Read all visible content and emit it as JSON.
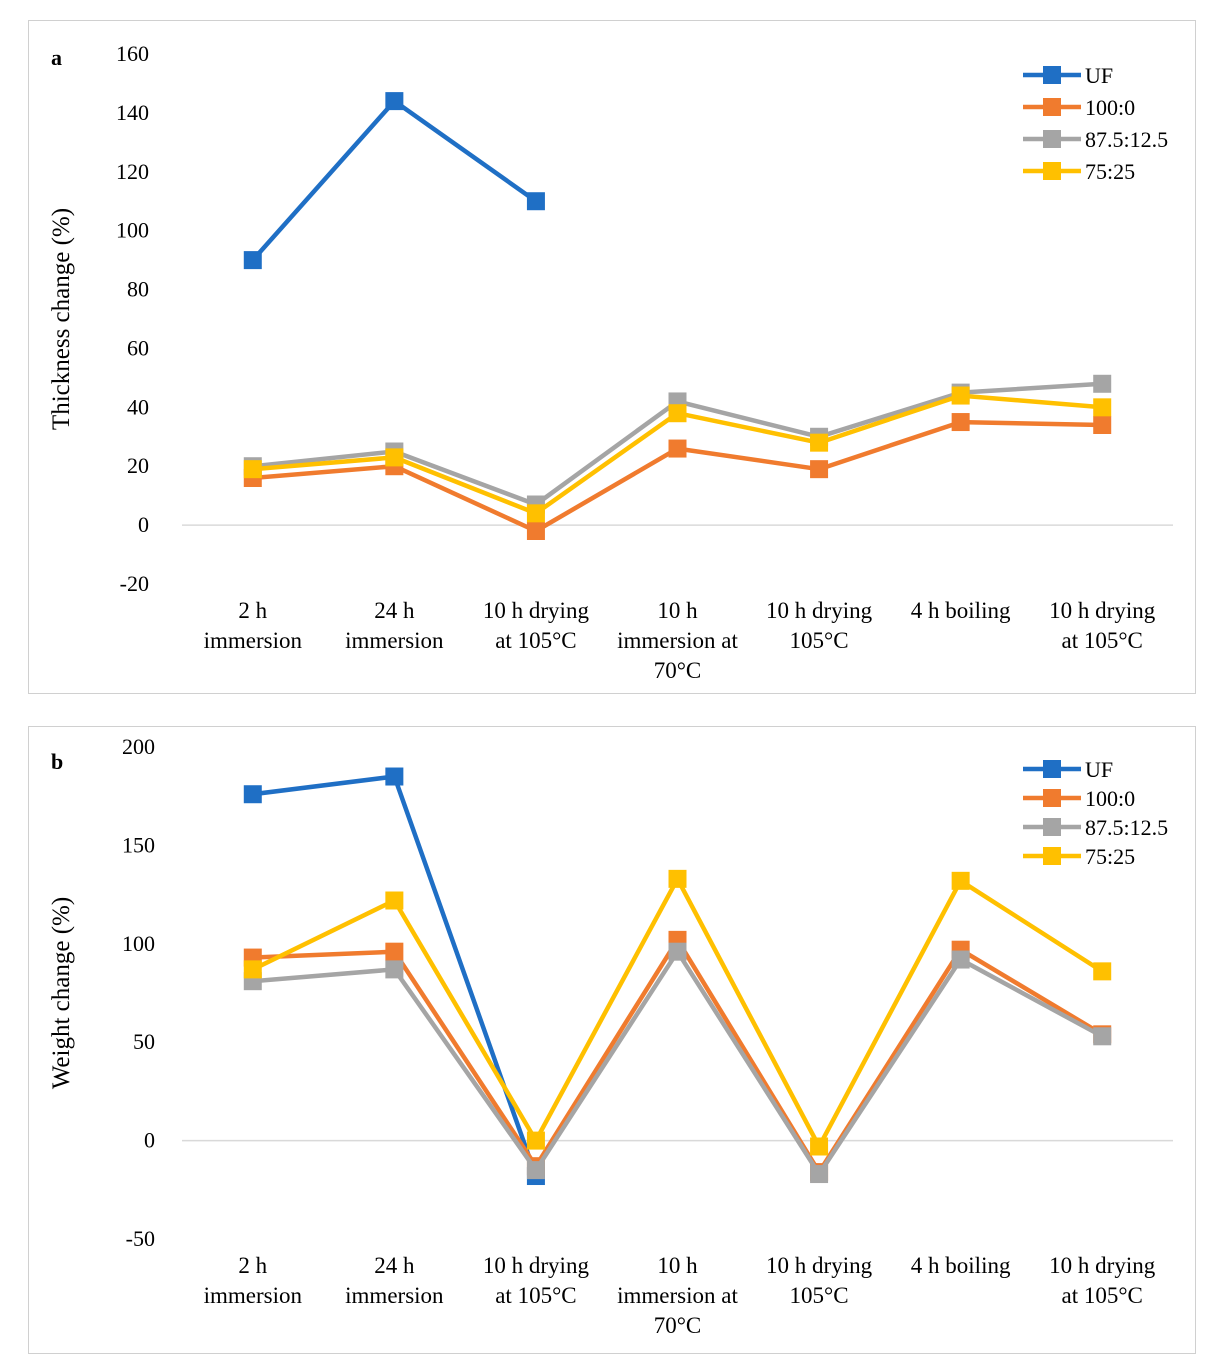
{
  "chart_data": [
    {
      "type": "line",
      "panel_label": "a",
      "title": "",
      "xlabel": "",
      "ylabel": "Thickness change (%)",
      "ylim": [
        -20,
        160
      ],
      "yticks": [
        -20,
        0,
        20,
        40,
        60,
        80,
        100,
        120,
        140,
        160
      ],
      "grid": "zero-line only",
      "legend_position": "top-right",
      "categories": [
        [
          "2 h",
          "immersion"
        ],
        [
          "24 h",
          "immersion"
        ],
        [
          "10 h drying",
          "at 105°C"
        ],
        [
          "10 h",
          "immersion at",
          "70°C"
        ],
        [
          "10 h drying",
          "105°C"
        ],
        [
          "4 h boiling"
        ],
        [
          "10 h drying",
          "at 105°C"
        ]
      ],
      "series": [
        {
          "name": "UF",
          "color": "#1f6fc5",
          "values": [
            90,
            144,
            110,
            null,
            null,
            null,
            null
          ]
        },
        {
          "name": "100:0",
          "color": "#f07b2e",
          "values": [
            16,
            20,
            -2,
            26,
            19,
            35,
            34
          ]
        },
        {
          "name": "87.5:12.5",
          "color": "#a5a5a5",
          "values": [
            20,
            25,
            7,
            42,
            30,
            45,
            48
          ]
        },
        {
          "name": "75:25",
          "color": "#ffc000",
          "values": [
            19,
            23,
            4,
            38,
            28,
            44,
            40
          ]
        }
      ]
    },
    {
      "type": "line",
      "panel_label": "b",
      "title": "",
      "xlabel": "",
      "ylabel": "Weight change (%)",
      "ylim": [
        -50,
        200
      ],
      "yticks": [
        -50,
        0,
        50,
        100,
        150,
        200
      ],
      "grid": "zero-line only",
      "legend_position": "top-right",
      "categories": [
        [
          "2 h",
          "immersion"
        ],
        [
          "24 h",
          "immersion"
        ],
        [
          "10 h drying",
          "at 105°C"
        ],
        [
          "10 h",
          "immersion at",
          "70°C"
        ],
        [
          "10 h drying",
          "105°C"
        ],
        [
          "4 h boiling"
        ],
        [
          "10 h drying",
          "at 105°C"
        ]
      ],
      "series": [
        {
          "name": "UF",
          "color": "#1f6fc5",
          "values": [
            176,
            185,
            -18,
            null,
            null,
            null,
            null
          ]
        },
        {
          "name": "100:0",
          "color": "#f07b2e",
          "values": [
            93,
            96,
            -13,
            102,
            -16,
            97,
            54
          ]
        },
        {
          "name": "87.5:12.5",
          "color": "#a5a5a5",
          "values": [
            81,
            87,
            -15,
            96,
            -17,
            92,
            53
          ]
        },
        {
          "name": "75:25",
          "color": "#ffc000",
          "values": [
            87,
            122,
            0,
            133,
            -3,
            132,
            86
          ]
        }
      ]
    }
  ]
}
